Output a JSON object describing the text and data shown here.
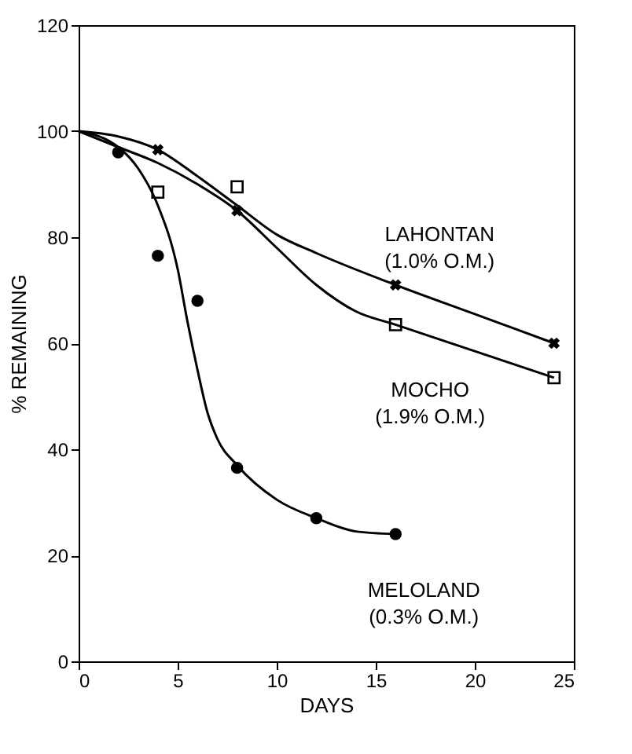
{
  "chart_data": {
    "type": "scatter",
    "xlabel": "DAYS",
    "ylabel": "% REMAINING",
    "xlim": [
      0,
      25
    ],
    "ylim": [
      0,
      120
    ],
    "xticks": [
      0,
      5,
      10,
      15,
      20,
      25
    ],
    "yticks": [
      0,
      20,
      40,
      60,
      80,
      100,
      120
    ],
    "grid": false,
    "series": [
      {
        "name": "LAHONTAN (1.0% O.M.)",
        "marker": "cross",
        "color": "#000000",
        "x": [
          4,
          8,
          16,
          24
        ],
        "values": [
          96.5,
          85,
          71,
          60
        ]
      },
      {
        "name": "MOCHO (1.9% O.M.)",
        "marker": "square",
        "color": "#000000",
        "x": [
          4,
          8,
          16,
          24
        ],
        "values": [
          88.5,
          89.5,
          63.5,
          53.5
        ]
      },
      {
        "name": "MELOLAND (0.3% O.M.)",
        "marker": "circle",
        "color": "#000000",
        "x": [
          2,
          4,
          6,
          8,
          12,
          16
        ],
        "values": [
          96,
          76.5,
          68,
          36.5,
          27,
          24
        ]
      },
      {
        "type": "line",
        "marker": "none",
        "line_style": "solid",
        "color": "#000000",
        "x": [
          0,
          2,
          4,
          6,
          8,
          10,
          12,
          16,
          20,
          24
        ],
        "values": [
          100,
          99,
          96.5,
          91.5,
          86,
          80.5,
          77,
          71,
          65.5,
          60
        ]
      },
      {
        "type": "line",
        "marker": "none",
        "line_style": "solid",
        "color": "#000000",
        "x": [
          0,
          2,
          4,
          6,
          8,
          10,
          12,
          14,
          16,
          20,
          24
        ],
        "values": [
          100,
          97,
          94,
          90,
          85,
          78,
          71,
          66,
          63.5,
          58.5,
          53.5
        ]
      },
      {
        "type": "line",
        "marker": "none",
        "line_style": "solid",
        "color": "#000000",
        "x": [
          0,
          2,
          3,
          4,
          5,
          5.5,
          6,
          6.5,
          7,
          8,
          10,
          12,
          14,
          16
        ],
        "values": [
          100,
          97,
          93,
          86,
          74,
          64,
          55,
          47,
          42,
          37,
          30.5,
          27,
          24.5,
          24
        ]
      }
    ]
  }
}
